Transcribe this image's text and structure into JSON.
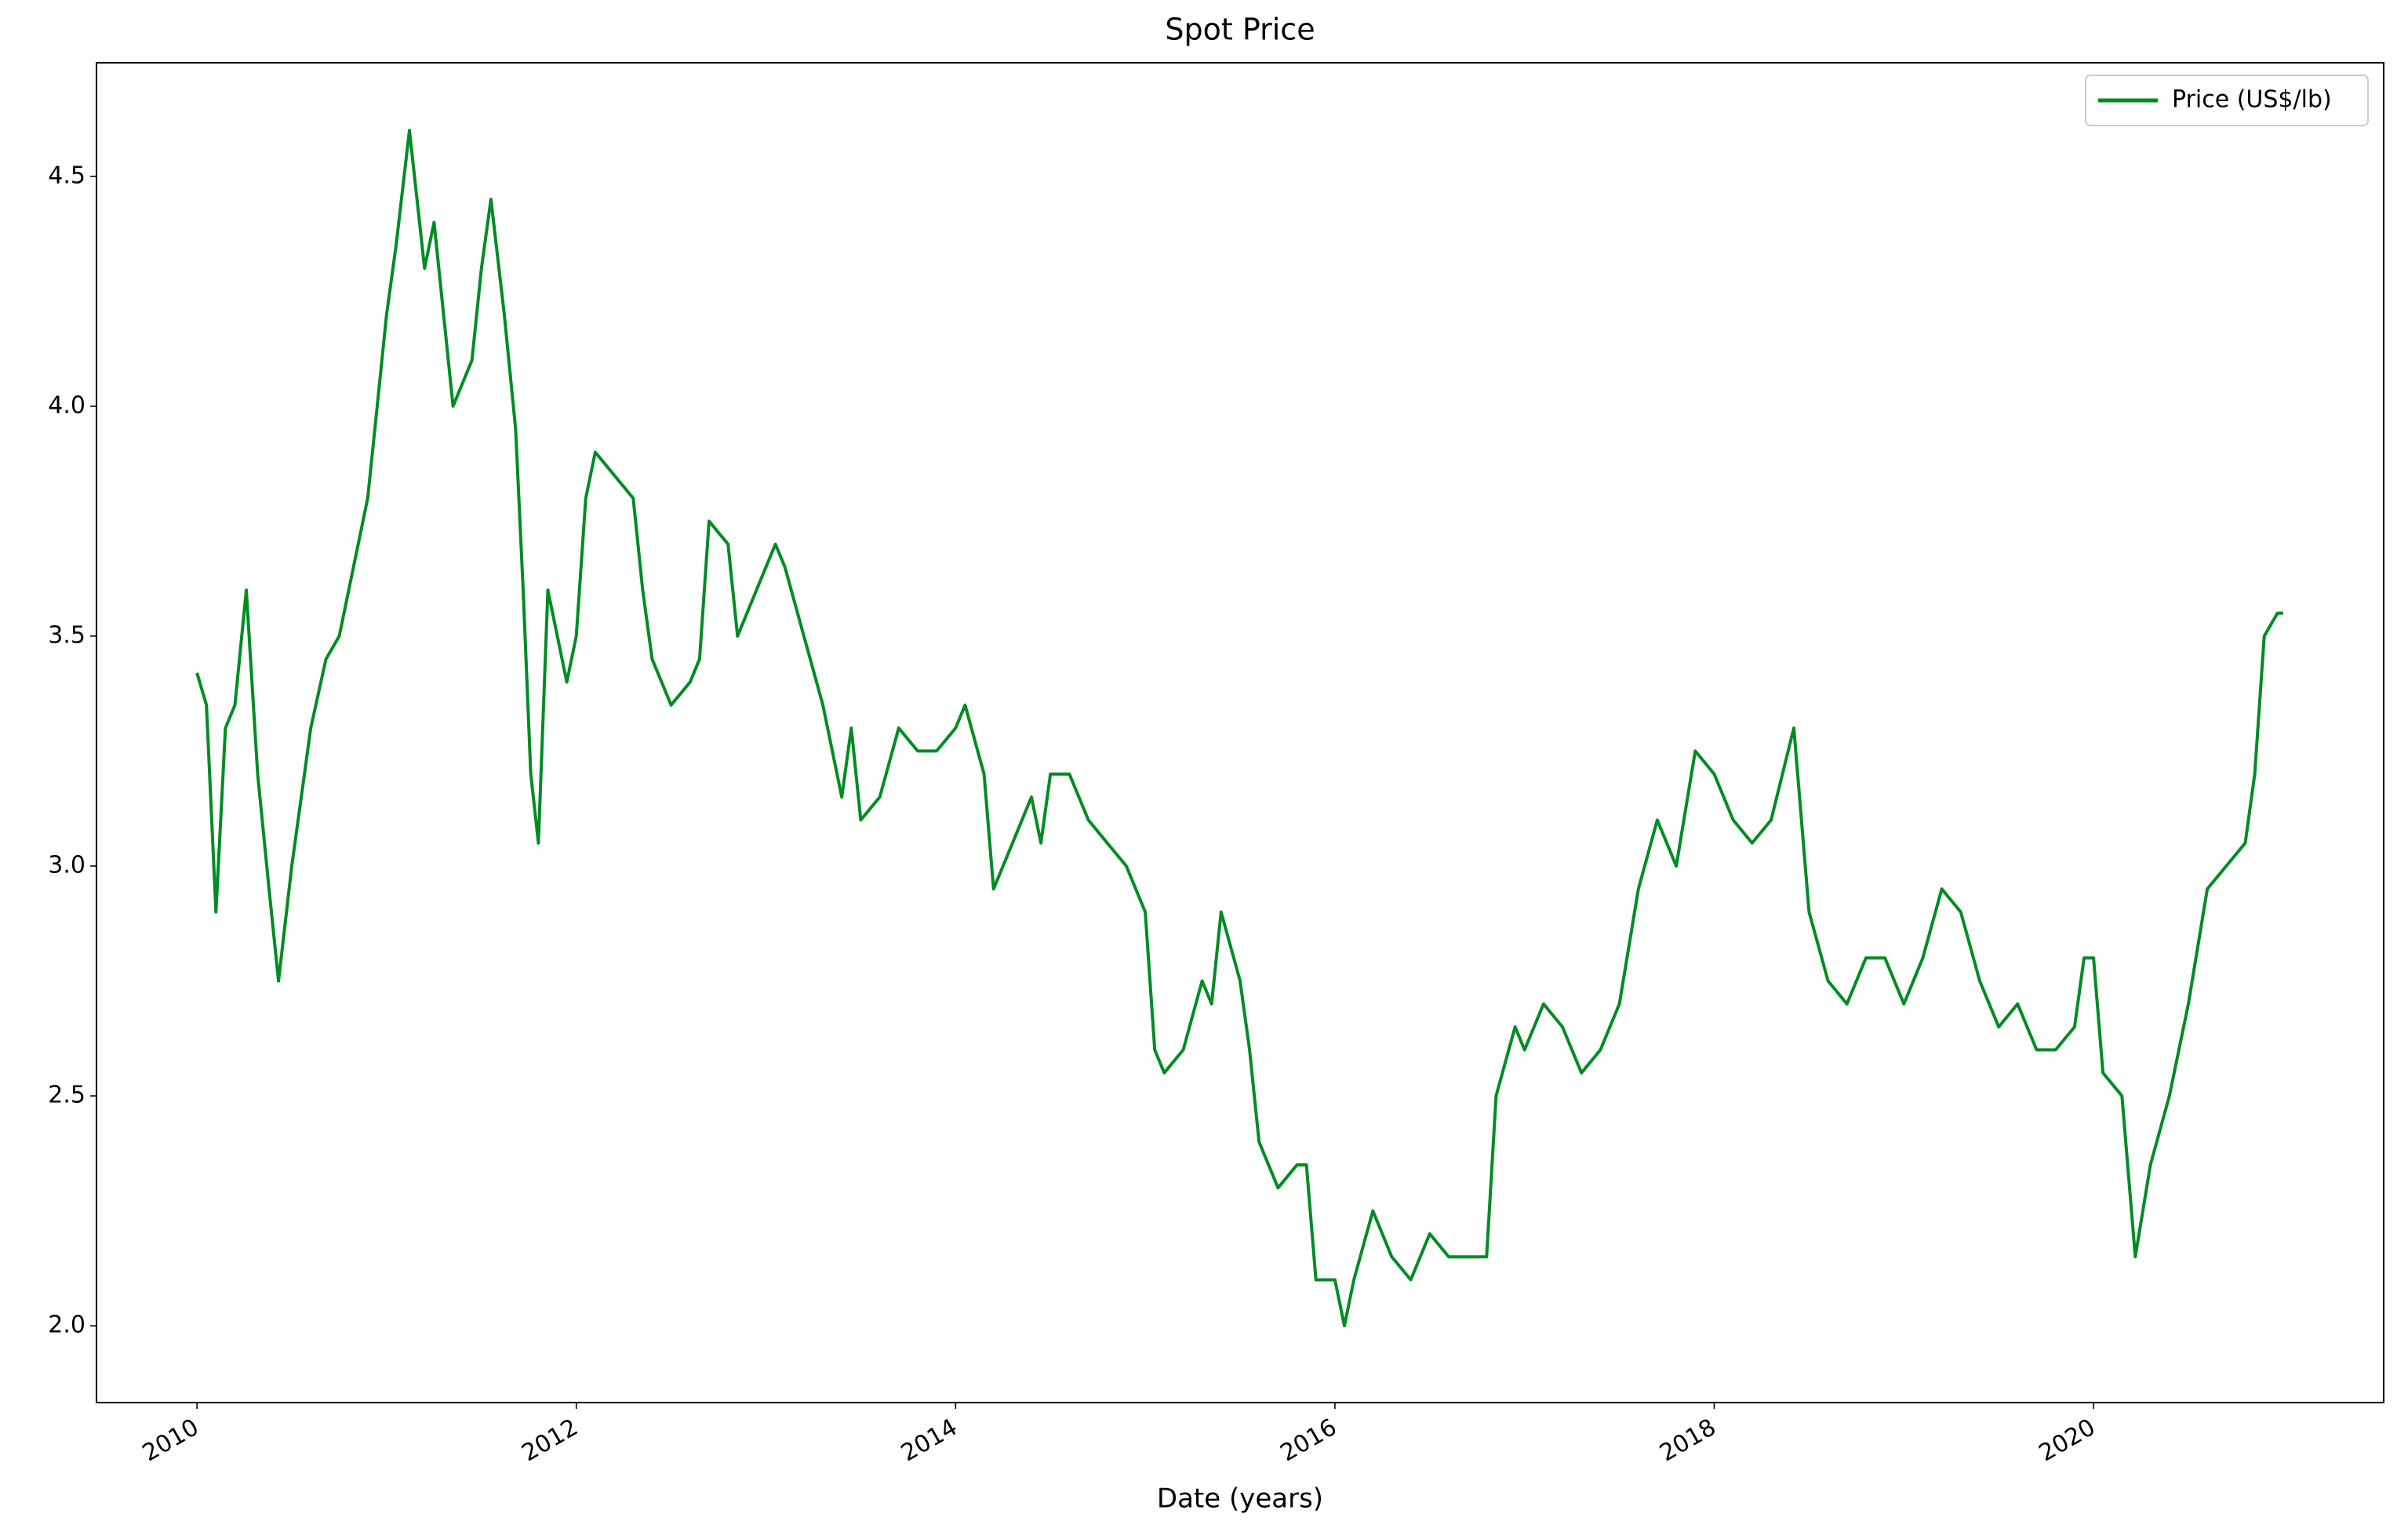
{
  "chart_data": {
    "type": "line",
    "title": "Spot Price",
    "xlabel": "Date (years)",
    "x": [
      2010.0,
      2010.05,
      2010.1,
      2010.15,
      2010.2,
      2010.26,
      2010.32,
      2010.38,
      2010.43,
      2010.5,
      2010.6,
      2010.68,
      2010.75,
      2010.85,
      2010.9,
      2010.95,
      2011.0,
      2011.05,
      2011.12,
      2011.2,
      2011.25,
      2011.3,
      2011.35,
      2011.45,
      2011.5,
      2011.55,
      2011.62,
      2011.68,
      2011.72,
      2011.76,
      2011.8,
      2011.85,
      2011.95,
      2012.0,
      2012.05,
      2012.1,
      2012.2,
      2012.3,
      2012.35,
      2012.4,
      2012.5,
      2012.6,
      2012.65,
      2012.7,
      2012.8,
      2012.85,
      2012.95,
      2013.05,
      2013.1,
      2013.2,
      2013.3,
      2013.4,
      2013.45,
      2013.5,
      2013.6,
      2013.7,
      2013.8,
      2013.9,
      2014.0,
      2014.05,
      2014.15,
      2014.2,
      2014.3,
      2014.4,
      2014.45,
      2014.5,
      2014.6,
      2014.7,
      2014.8,
      2014.9,
      2015.0,
      2015.05,
      2015.1,
      2015.2,
      2015.3,
      2015.35,
      2015.4,
      2015.5,
      2015.55,
      2015.6,
      2015.7,
      2015.8,
      2015.85,
      2015.9,
      2016.0,
      2016.05,
      2016.1,
      2016.2,
      2016.3,
      2016.4,
      2016.5,
      2016.6,
      2016.7,
      2016.8,
      2016.85,
      2016.95,
      2017.0,
      2017.1,
      2017.2,
      2017.3,
      2017.4,
      2017.5,
      2017.6,
      2017.7,
      2017.8,
      2017.9,
      2018.0,
      2018.1,
      2018.2,
      2018.3,
      2018.42,
      2018.5,
      2018.6,
      2018.7,
      2018.8,
      2018.9,
      2019.0,
      2019.1,
      2019.2,
      2019.3,
      2019.4,
      2019.5,
      2019.6,
      2019.7,
      2019.8,
      2019.9,
      2019.95,
      2020.0,
      2020.05,
      2020.15,
      2020.22,
      2020.3,
      2020.4,
      2020.5,
      2020.6,
      2020.7,
      2020.8,
      2020.85,
      2020.9,
      2020.97,
      2021.0
    ],
    "series": [
      {
        "name": "Price (US$/lb)",
        "color": "#008c23",
        "values": [
          3.42,
          3.35,
          2.9,
          3.3,
          3.35,
          3.6,
          3.2,
          2.95,
          2.75,
          3.0,
          3.3,
          3.45,
          3.5,
          3.7,
          3.8,
          4.0,
          4.2,
          4.35,
          4.6,
          4.3,
          4.4,
          4.2,
          4.0,
          4.1,
          4.3,
          4.45,
          4.2,
          3.95,
          3.6,
          3.2,
          3.05,
          3.6,
          3.4,
          3.5,
          3.8,
          3.9,
          3.85,
          3.8,
          3.6,
          3.45,
          3.35,
          3.4,
          3.45,
          3.75,
          3.7,
          3.5,
          3.6,
          3.7,
          3.65,
          3.5,
          3.35,
          3.15,
          3.3,
          3.1,
          3.15,
          3.3,
          3.25,
          3.25,
          3.3,
          3.35,
          3.2,
          2.95,
          3.05,
          3.15,
          3.05,
          3.2,
          3.2,
          3.1,
          3.05,
          3.0,
          2.9,
          2.6,
          2.55,
          2.6,
          2.75,
          2.7,
          2.9,
          2.75,
          2.6,
          2.4,
          2.3,
          2.35,
          2.35,
          2.1,
          2.1,
          2.0,
          2.1,
          2.25,
          2.15,
          2.1,
          2.2,
          2.15,
          2.15,
          2.15,
          2.5,
          2.65,
          2.6,
          2.7,
          2.65,
          2.55,
          2.6,
          2.7,
          2.95,
          3.1,
          3.0,
          3.25,
          3.2,
          3.1,
          3.05,
          3.1,
          3.3,
          2.9,
          2.75,
          2.7,
          2.8,
          2.8,
          2.7,
          2.8,
          2.95,
          2.9,
          2.75,
          2.65,
          2.7,
          2.6,
          2.6,
          2.65,
          2.8,
          2.8,
          2.55,
          2.5,
          2.15,
          2.35,
          2.5,
          2.7,
          2.95,
          3.0,
          3.05,
          3.2,
          3.5,
          3.55,
          3.55
        ]
      }
    ],
    "xlim": [
      2009.47,
      2021.53
    ],
    "xticks": [
      2010,
      2012,
      2014,
      2016,
      2018,
      2020
    ],
    "ylim": [
      1.833,
      4.747
    ],
    "yticks": [
      {
        "value": 2,
        "label": "2.0"
      },
      2.5,
      {
        "value": 3,
        "label": "3.0"
      },
      3.5,
      {
        "value": 4,
        "label": "4.0"
      },
      4.5
    ],
    "grid": false,
    "legend": "upper right"
  }
}
